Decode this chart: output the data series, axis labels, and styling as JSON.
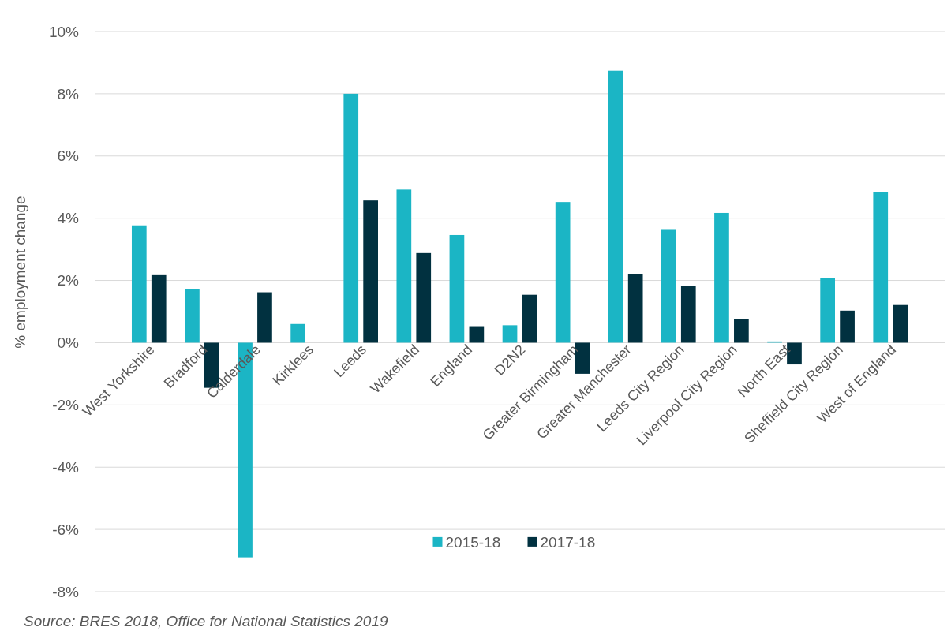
{
  "chart_data": {
    "type": "bar",
    "ylabel": "% employment  change",
    "categories": [
      "West Yorkshire",
      "Bradford",
      "Calderdale",
      "Kirklees",
      "Leeds",
      "Wakefield",
      "England",
      "D2N2",
      "Greater Birmingham",
      "Greater Manchester",
      "Leeds City Region",
      "Liverpool City Region",
      "North East",
      "Sheffield City Region",
      "West of England"
    ],
    "series": [
      {
        "name": "2015-18",
        "color": "#1bb5c5",
        "values": [
          3.77,
          1.71,
          -6.9,
          0.6,
          8.0,
          4.92,
          3.46,
          0.56,
          4.52,
          8.74,
          3.65,
          4.17,
          0.04,
          2.08,
          4.85
        ]
      },
      {
        "name": "2017-18",
        "color": "#013140",
        "values": [
          2.17,
          -1.45,
          1.62,
          null,
          4.57,
          2.88,
          0.53,
          1.54,
          -1.0,
          2.2,
          1.82,
          0.75,
          -0.7,
          1.03,
          1.21
        ]
      }
    ],
    "ylim": [
      -8,
      10
    ],
    "yticks": [
      {
        "value": -8,
        "label": "-8%"
      },
      {
        "value": -6,
        "label": "-6%"
      },
      {
        "value": -4,
        "label": "-4%"
      },
      {
        "value": -2,
        "label": "-2%"
      },
      {
        "value": 0,
        "label": "0%"
      },
      {
        "value": 2,
        "label": "2%"
      },
      {
        "value": 4,
        "label": "4%"
      },
      {
        "value": 6,
        "label": "6%"
      },
      {
        "value": 8,
        "label": "8%"
      },
      {
        "value": 10,
        "label": "10%"
      }
    ],
    "grid": "y",
    "legend": "bottom",
    "annotations": [
      "Source: BRES 2018, Office for National Statistics 2019"
    ]
  }
}
